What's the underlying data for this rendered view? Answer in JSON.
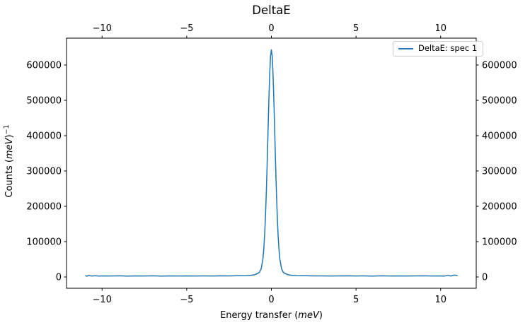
{
  "figure": {
    "background_color": "#ffffff",
    "spine_color": "#000000",
    "tick_color": "#000000"
  },
  "chart_data": {
    "type": "line",
    "title": "DeltaE",
    "xlabel": {
      "prefix": "Energy transfer (",
      "unit": "meV",
      "suffix": ")"
    },
    "ylabel": {
      "prefix": "Counts (",
      "unit": "meV",
      "suffix": ")",
      "exponent": "−1"
    },
    "xlim": [
      -12.1,
      12.1
    ],
    "ylim": [
      -32000,
      676000
    ],
    "grid": false,
    "x_ticks": [
      {
        "value": -10,
        "label": "−10"
      },
      {
        "value": -5,
        "label": "−5"
      },
      {
        "value": 0,
        "label": "0"
      },
      {
        "value": 5,
        "label": "5"
      },
      {
        "value": 10,
        "label": "10"
      }
    ],
    "y_ticks": [
      {
        "value": 0,
        "label": "0"
      },
      {
        "value": 100000,
        "label": "100000"
      },
      {
        "value": 200000,
        "label": "200000"
      },
      {
        "value": 300000,
        "label": "300000"
      },
      {
        "value": 400000,
        "label": "400000"
      },
      {
        "value": 500000,
        "label": "500000"
      },
      {
        "value": 600000,
        "label": "600000"
      }
    ],
    "tick_label_sides": [
      "bottom",
      "top",
      "left",
      "right"
    ],
    "legend": {
      "position": "upper right",
      "entries": [
        {
          "label": "DeltaE: spec 1",
          "color": "#1f77b4"
        }
      ]
    },
    "series": [
      {
        "name": "DeltaE: spec 1",
        "color": "#1f77b4",
        "line_width": 1.5,
        "peak": {
          "center": 0.0,
          "max_counts": 643000,
          "fwhm_meV": 0.5
        },
        "points": [
          [
            -11.0,
            3600
          ],
          [
            -10.9,
            2200
          ],
          [
            -10.8,
            4000
          ],
          [
            -10.6,
            2700
          ],
          [
            -10.4,
            3400
          ],
          [
            -10.2,
            2600
          ],
          [
            -10.0,
            3000
          ],
          [
            -9.5,
            2700
          ],
          [
            -9.0,
            3200
          ],
          [
            -8.5,
            2500
          ],
          [
            -8.0,
            3000
          ],
          [
            -7.5,
            2800
          ],
          [
            -7.0,
            3200
          ],
          [
            -6.5,
            2600
          ],
          [
            -6.0,
            3000
          ],
          [
            -5.5,
            2800
          ],
          [
            -5.0,
            3100
          ],
          [
            -4.5,
            2700
          ],
          [
            -4.0,
            3000
          ],
          [
            -3.5,
            2800
          ],
          [
            -3.0,
            3200
          ],
          [
            -2.5,
            2900
          ],
          [
            -2.0,
            3500
          ],
          [
            -1.5,
            3800
          ],
          [
            -1.2,
            4600
          ],
          [
            -1.0,
            6200
          ],
          [
            -0.9,
            8000
          ],
          [
            -0.8,
            10000
          ],
          [
            -0.7,
            13500
          ],
          [
            -0.6,
            23500
          ],
          [
            -0.5,
            51000
          ],
          [
            -0.45,
            78000
          ],
          [
            -0.4,
            116000
          ],
          [
            -0.35,
            170000
          ],
          [
            -0.3,
            237000
          ],
          [
            -0.25,
            318000
          ],
          [
            -0.2,
            407000
          ],
          [
            -0.15,
            496000
          ],
          [
            -0.1,
            572000
          ],
          [
            -0.05,
            625000
          ],
          [
            0.0,
            643000
          ],
          [
            0.05,
            625000
          ],
          [
            0.1,
            572000
          ],
          [
            0.15,
            496000
          ],
          [
            0.2,
            407000
          ],
          [
            0.25,
            318000
          ],
          [
            0.3,
            237000
          ],
          [
            0.35,
            170000
          ],
          [
            0.4,
            116000
          ],
          [
            0.45,
            78000
          ],
          [
            0.5,
            51000
          ],
          [
            0.6,
            23500
          ],
          [
            0.7,
            13500
          ],
          [
            0.8,
            10000
          ],
          [
            0.9,
            8000
          ],
          [
            1.0,
            6200
          ],
          [
            1.2,
            4600
          ],
          [
            1.5,
            3800
          ],
          [
            2.0,
            3400
          ],
          [
            2.5,
            2900
          ],
          [
            3.0,
            3100
          ],
          [
            3.5,
            2700
          ],
          [
            4.0,
            3000
          ],
          [
            4.5,
            3200
          ],
          [
            5.0,
            2800
          ],
          [
            5.5,
            3100
          ],
          [
            6.0,
            2600
          ],
          [
            6.5,
            3300
          ],
          [
            7.0,
            2800
          ],
          [
            7.5,
            3100
          ],
          [
            8.0,
            2700
          ],
          [
            8.5,
            3000
          ],
          [
            9.0,
            3200
          ],
          [
            9.5,
            2800
          ],
          [
            10.0,
            3100
          ],
          [
            10.2,
            2400
          ],
          [
            10.4,
            4600
          ],
          [
            10.6,
            2800
          ],
          [
            10.8,
            5400
          ],
          [
            11.0,
            4200
          ]
        ]
      }
    ]
  }
}
